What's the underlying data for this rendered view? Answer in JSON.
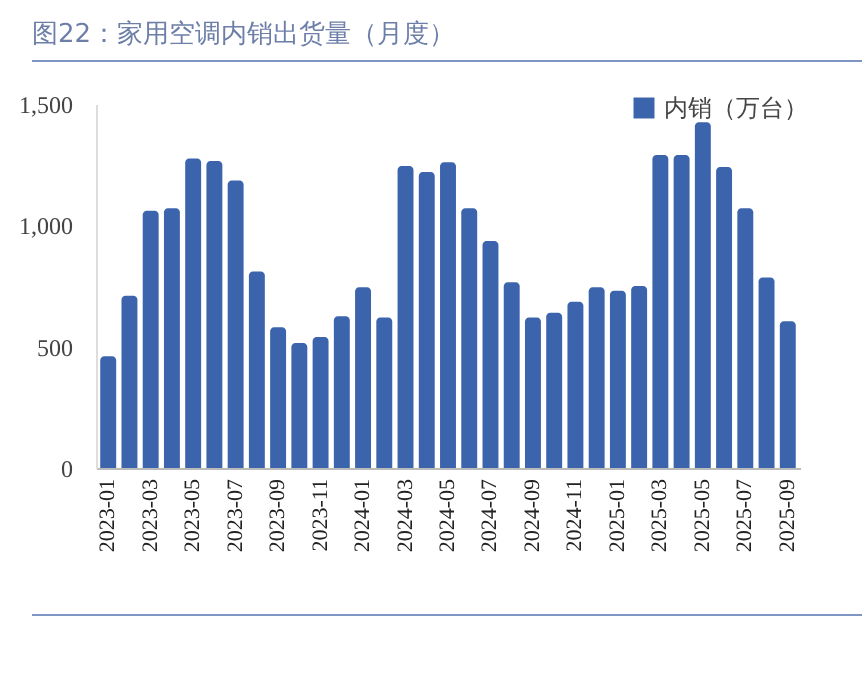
{
  "chart_data": {
    "type": "bar",
    "title": "图22：家用空调内销出货量（月度）",
    "categories": [
      "2023-01",
      null,
      "2023-03",
      null,
      "2023-05",
      null,
      "2023-07",
      null,
      "2023-09",
      null,
      "2023-11",
      null,
      "2024-01",
      null,
      "2024-03",
      null,
      "2024-05",
      null,
      "2024-07",
      null,
      "2024-09",
      null,
      "2024-11",
      null,
      "2025-01",
      null,
      "2025-03",
      null,
      "2025-05",
      null,
      "2025-07",
      null,
      "2025-09"
    ],
    "series": [
      {
        "name": "内销（万台）",
        "color": "#3b64ad",
        "values": [
          460,
          710,
          1060,
          1070,
          1275,
          1265,
          1185,
          810,
          580,
          515,
          540,
          625,
          745,
          620,
          1245,
          1220,
          1260,
          1070,
          935,
          765,
          620,
          640,
          685,
          745,
          730,
          750,
          1290,
          1290,
          1425,
          1240,
          1070,
          785,
          605
        ]
      }
    ],
    "ylim": [
      0,
      1500
    ],
    "yticks": [
      0,
      {
        "value": 500,
        "label": "500"
      },
      {
        "value": 1000,
        "label": "1,000"
      },
      {
        "value": 1500,
        "label": "1,500"
      }
    ],
    "grid": false,
    "legend": "top right"
  }
}
